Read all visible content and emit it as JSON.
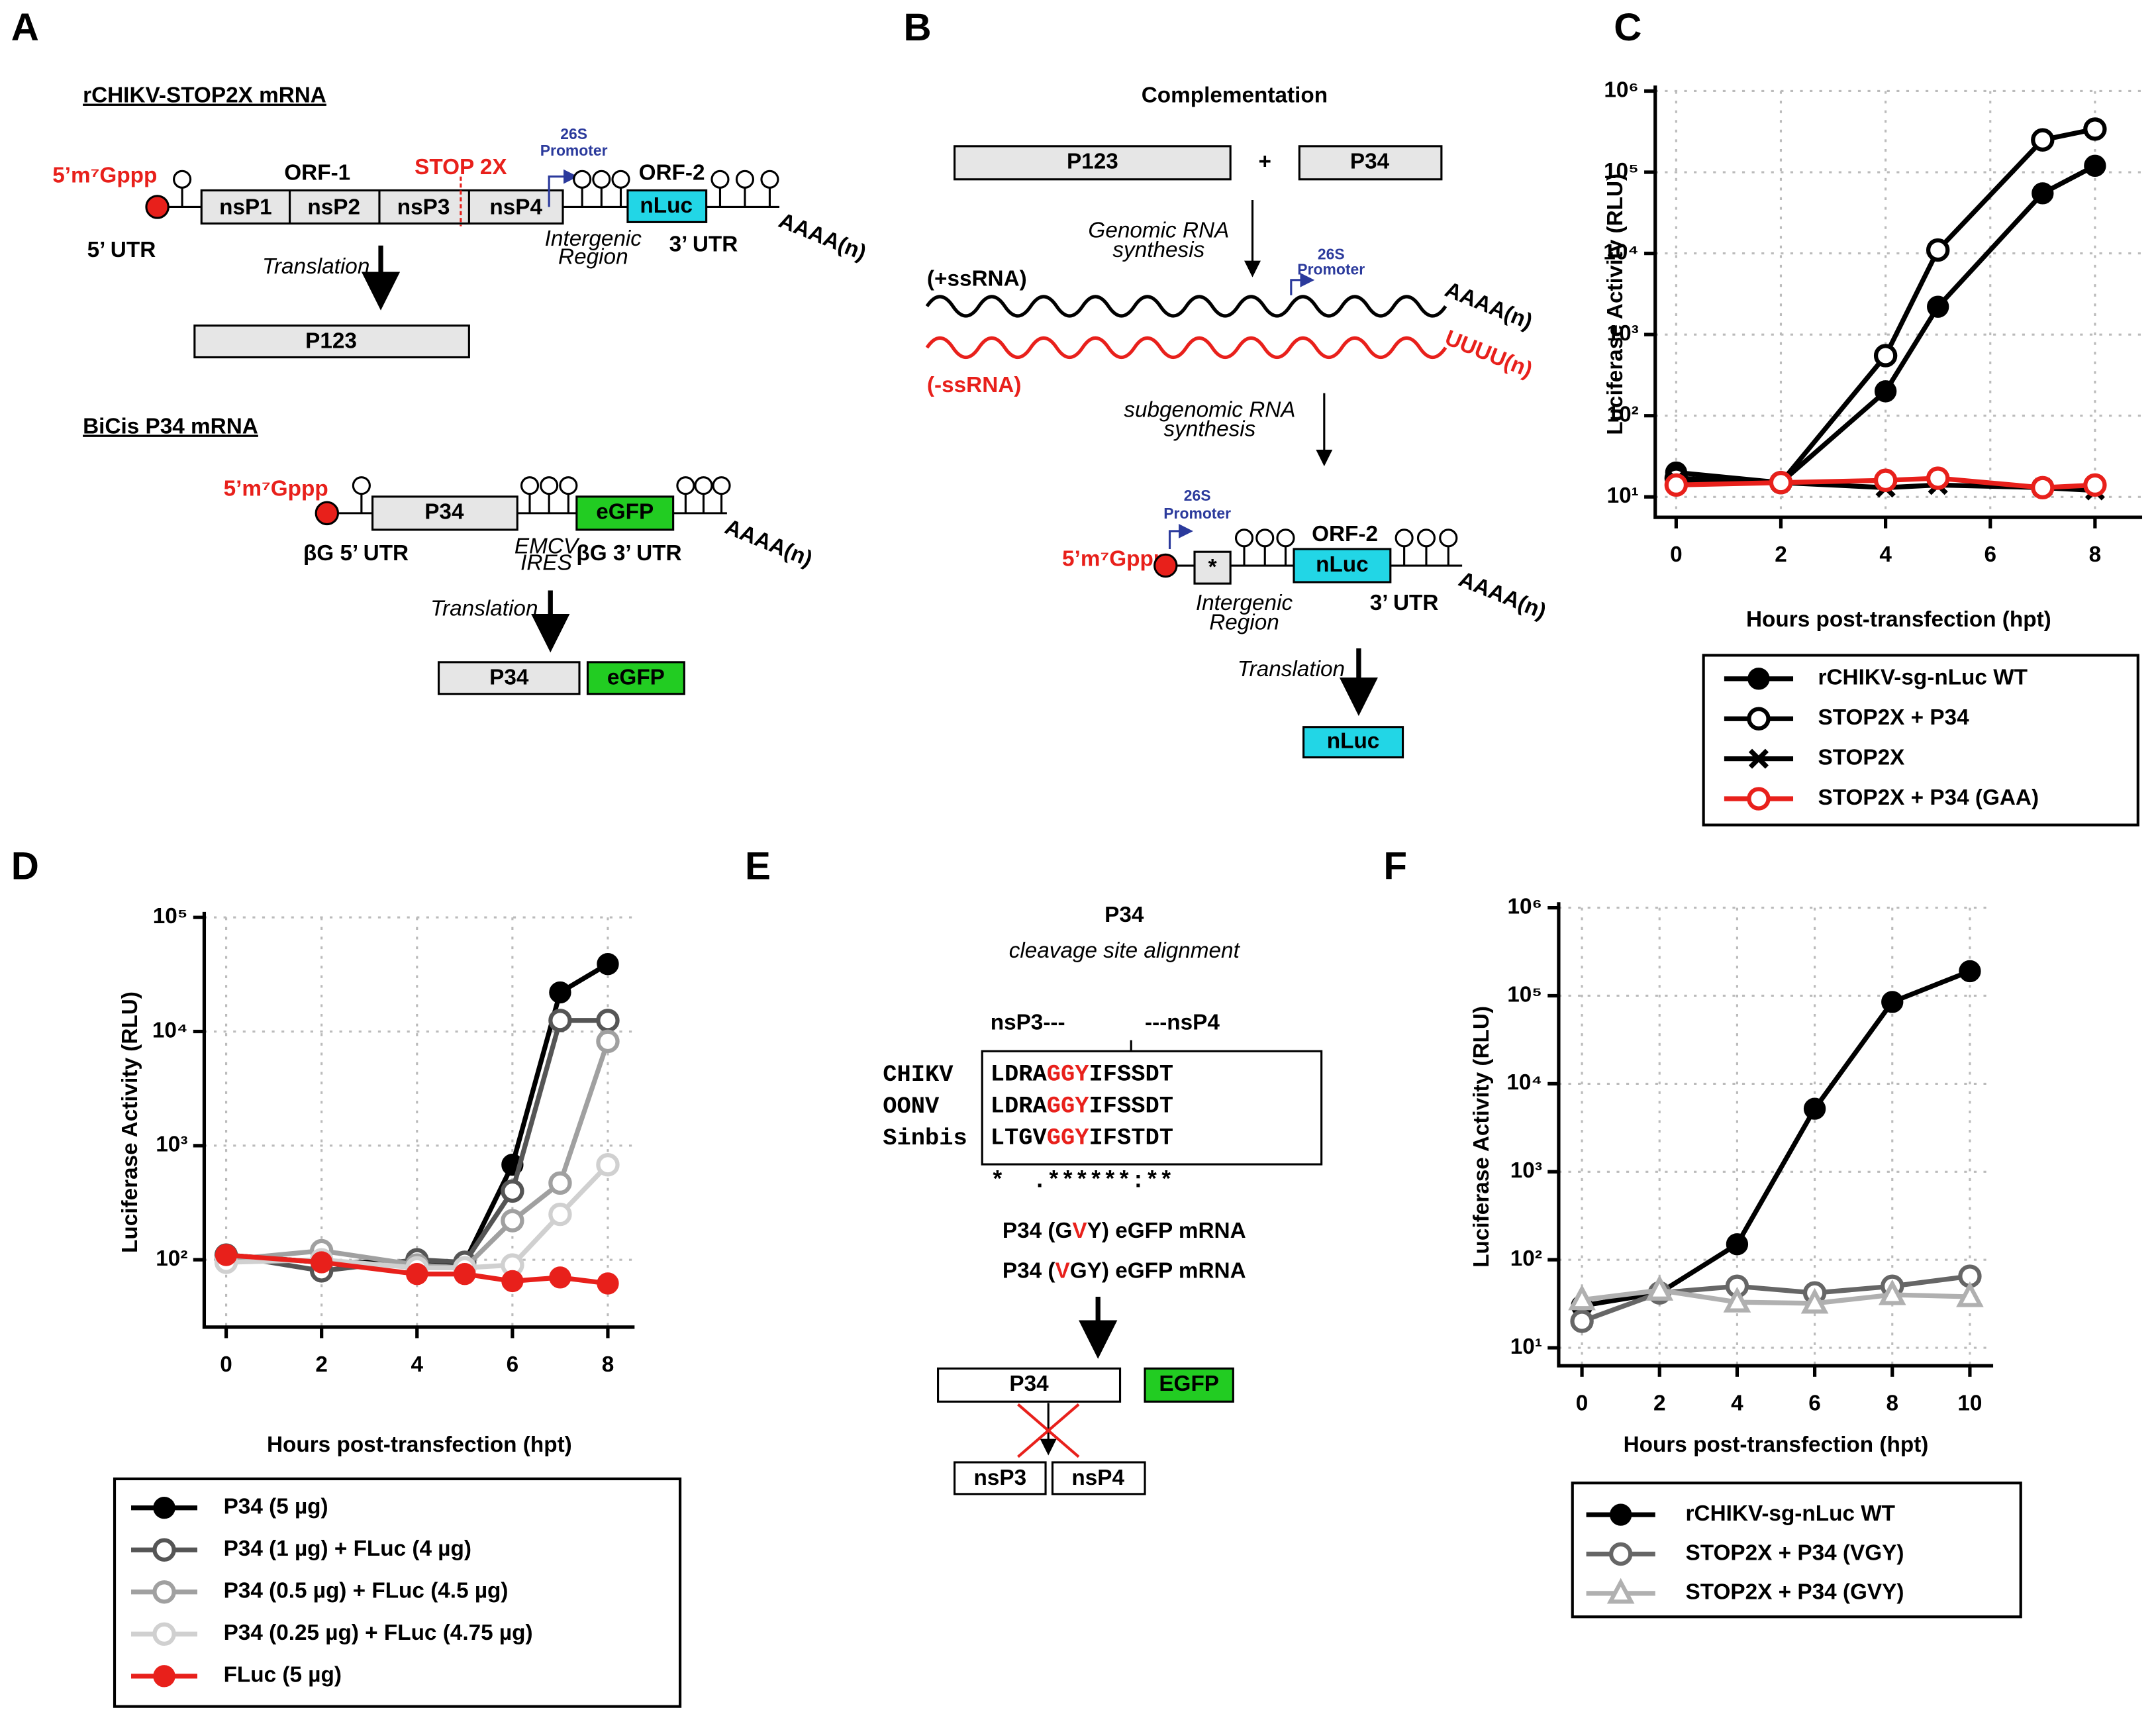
{
  "panel_labels": [
    "A",
    "B",
    "C",
    "D",
    "E",
    "F"
  ],
  "panel_a": {
    "title": "rCHIKV-STOP2X mRNA",
    "cap": "5’m⁷Gppp",
    "orf1": "ORF-1",
    "nsps": [
      "nsP1",
      "nsP2",
      "nsP3",
      "nsP4"
    ],
    "stop": "STOP 2X",
    "promoter": [
      "26S",
      "Promoter"
    ],
    "orf2": "ORF-2",
    "reporter": "nLuc",
    "utr5": "5’ UTR",
    "intergenic": [
      "Intergenic",
      "Region"
    ],
    "utr3": "3’ UTR",
    "polya": "AAAA(n)",
    "translation": "Translation",
    "product": "P123",
    "bicis_title": "BiCis P34 mRNA",
    "bicis_cap": "5’m⁷Gppp",
    "bicis_orf": "P34",
    "bicis_reporter": "eGFP",
    "bicis_utr5": "βG 5’ UTR",
    "ires": [
      "EMCV",
      "IRES"
    ],
    "bicis_utr3": "βG 3’ UTR",
    "bicis_polya": "AAAA(n)",
    "bicis_translation": "Translation",
    "bicis_products": [
      "P34",
      "eGFP"
    ]
  },
  "panel_b": {
    "title": "Complementation",
    "inputs": [
      "P123",
      "P34"
    ],
    "plus": "+",
    "genomic": [
      "Genomic RNA",
      "synthesis"
    ],
    "promoter": [
      "26S",
      "Promoter"
    ],
    "plus_strand": "(+ssRNA)",
    "plus_tail": "AAAA(n)",
    "minus_strand": "(-ssRNA)",
    "minus_tail": "UUUU(n)",
    "subgenomic": [
      "subgenomic RNA",
      "synthesis"
    ],
    "sg_promoter": [
      "26S",
      "Promoter"
    ],
    "cap": "5’m⁷Gppp",
    "stub": "*",
    "orf2": "ORF-2",
    "reporter": "nLuc",
    "intergenic": [
      "Intergenic",
      "Region"
    ],
    "utr3": "3’ UTR",
    "polya": "AAAA(n)",
    "translation": "Translation",
    "product": "nLuc"
  },
  "panel_e": {
    "title": "P34",
    "subtitle": "cleavage site alignment",
    "left": "nsP3---",
    "right": "---nsP4",
    "alignment": [
      {
        "virus": "CHIKV",
        "pre": "LDRA",
        "motif": "GGY",
        "post": "IFSSDT"
      },
      {
        "virus": "OONV",
        "pre": "LDRA",
        "motif": "GGY",
        "post": "IFSSDT"
      },
      {
        "virus": "Sinbis",
        "pre": "LTGV",
        "motif": "GGY",
        "post": "IFSTDT"
      }
    ],
    "conservation": "*  .******:**",
    "mutants": [
      {
        "pre": "P34 (G",
        "mut": "V",
        "post": "Y) eGFP mRNA"
      },
      {
        "pre": "P34 (",
        "mut": "V",
        "post": "GY) eGFP mRNA"
      }
    ],
    "construct": [
      "P34",
      "EGFP"
    ],
    "blocked": [
      "nsP3",
      "nsP4"
    ]
  },
  "chart_data": [
    {
      "type": "line",
      "yscale": "log",
      "grid": true,
      "legend": "below",
      "xlabel": "Hours post-transfection (hpt)",
      "ylabel": "Luciferase Activity (RLU)",
      "x": [
        0,
        2,
        4,
        5,
        7,
        8
      ],
      "xlim": [
        -0.4,
        8.9
      ],
      "xticks": [
        0,
        2,
        4,
        6,
        8
      ],
      "ylim": [
        5.6,
        1000000
      ],
      "yticks": [
        {
          "value": 10,
          "label": "10¹"
        },
        {
          "value": 100,
          "label": "10²"
        },
        {
          "value": 1000,
          "label": "10³"
        },
        {
          "value": 10000,
          "label": "10⁴"
        },
        {
          "value": 100000,
          "label": "10⁵"
        },
        {
          "value": 1000000,
          "label": "10⁶"
        }
      ],
      "series": [
        {
          "name": "rCHIKV-sg-nLuc WT",
          "color": "#000000",
          "marker": "circle",
          "values": [
            20,
            15,
            200,
            2200,
            55000,
            120000
          ]
        },
        {
          "name": "STOP2X + P34",
          "color": "#000000",
          "marker": "circle-open",
          "values": [
            17,
            15,
            550,
            11000,
            250000,
            340000
          ]
        },
        {
          "name": "STOP2X",
          "color": "#000000",
          "marker": "x",
          "values": [
            16,
            15,
            13,
            14,
            13,
            12
          ]
        },
        {
          "name": "STOP2X + P34 (GAA)",
          "color": "#e8201b",
          "marker": "circle-open",
          "values": [
            14,
            15,
            16,
            17,
            13,
            14
          ]
        }
      ]
    },
    {
      "type": "line",
      "yscale": "log",
      "grid": true,
      "legend": "below",
      "xlabel": "Hours post-transfection (hpt)",
      "ylabel": "Luciferase Activity (RLU)",
      "x": [
        0,
        2,
        4,
        5,
        6,
        7,
        8
      ],
      "xlim": [
        -0.46,
        8.56
      ],
      "xticks": [
        0,
        2,
        4,
        6,
        8
      ],
      "ylim": [
        25.7,
        100000
      ],
      "yticks": [
        {
          "value": 100,
          "label": "10²"
        },
        {
          "value": 1000,
          "label": "10³"
        },
        {
          "value": 10000,
          "label": "10⁴"
        },
        {
          "value": 100000,
          "label": "10⁵"
        }
      ],
      "series": [
        {
          "name": "P34 (5 µg)",
          "color": "#000000",
          "marker": "circle",
          "values": [
            110,
            95,
            95,
            95,
            680,
            22000,
            39000
          ]
        },
        {
          "name": "P34 (1 µg) + FLuc (4 µg)",
          "color": "#555555",
          "marker": "circle-open",
          "values": [
            110,
            80,
            100,
            95,
            400,
            12500,
            12500
          ]
        },
        {
          "name": "P34 (0.5 µg) + FLuc (4.5 µg)",
          "color": "#a0a0a0",
          "marker": "circle-open",
          "values": [
            100,
            120,
            90,
            85,
            220,
            470,
            8200
          ]
        },
        {
          "name": "P34 (0.25 µg) + FLuc (4.75 µg)",
          "color": "#d0d0d0",
          "marker": "circle-open",
          "values": [
            95,
            100,
            85,
            85,
            90,
            250,
            680
          ]
        },
        {
          "name": "FLuc (5 µg)",
          "color": "#e8201b",
          "marker": "circle",
          "values": [
            110,
            95,
            75,
            75,
            65,
            70,
            62
          ]
        }
      ]
    },
    {
      "type": "line",
      "yscale": "log",
      "grid": true,
      "legend": "below",
      "xlabel": "Hours post-transfection (hpt)",
      "ylabel": "Luciferase Activity (RLU)",
      "x": [
        0,
        2,
        4,
        6,
        8,
        10
      ],
      "xlim": [
        -0.6,
        10.6
      ],
      "xticks": [
        0,
        2,
        4,
        6,
        8,
        10
      ],
      "ylim": [
        6.25,
        1000000
      ],
      "yticks": [
        {
          "value": 10,
          "label": "10¹"
        },
        {
          "value": 100,
          "label": "10²"
        },
        {
          "value": 1000,
          "label": "10³"
        },
        {
          "value": 10000,
          "label": "10⁴"
        },
        {
          "value": 100000,
          "label": "10⁵"
        },
        {
          "value": 1000000,
          "label": "10⁶"
        }
      ],
      "series": [
        {
          "name": "rCHIKV-sg-nLuc WT",
          "color": "#000000",
          "marker": "circle",
          "values": [
            30,
            42,
            150,
            5200,
            85000,
            190000
          ]
        },
        {
          "name": "STOP2X + P34 (VGY)",
          "color": "#666666",
          "marker": "circle-open",
          "values": [
            20,
            42,
            50,
            42,
            50,
            65
          ]
        },
        {
          "name": "STOP2X + P34 (GVY)",
          "color": "#b0b0b0",
          "marker": "triangle-open",
          "values": [
            35,
            45,
            33,
            32,
            40,
            38
          ]
        }
      ]
    }
  ]
}
